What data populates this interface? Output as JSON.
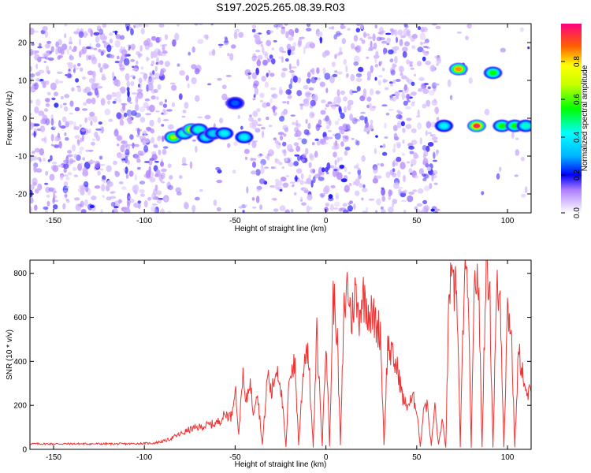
{
  "title": "S197.2025.265.08.39.R03",
  "chart_data": [
    {
      "type": "heatmap",
      "xlabel": "Height of straight line (km)",
      "ylabel": "Frequency (Hz)",
      "xlim": [
        -163,
        113
      ],
      "ylim": [
        -25,
        25
      ],
      "xticks": [
        -150,
        -100,
        -50,
        0,
        50,
        100
      ],
      "yticks": [
        -20,
        -10,
        0,
        10,
        20
      ],
      "colorbar": {
        "label": "Normalized spectral amplitude",
        "range": [
          0,
          1
        ],
        "ticks": [
          "0.0",
          "0.2",
          "0.4",
          "0.6",
          "0.8"
        ]
      },
      "blobs": [
        {
          "x": -84,
          "y": -5,
          "amp": 0.65
        },
        {
          "x": -78,
          "y": -4,
          "amp": 0.45
        },
        {
          "x": -74,
          "y": -3,
          "amp": 0.75
        },
        {
          "x": -70,
          "y": -3,
          "amp": 0.45
        },
        {
          "x": -66,
          "y": -5,
          "amp": 0.4
        },
        {
          "x": -62,
          "y": -4,
          "amp": 0.35
        },
        {
          "x": -56,
          "y": -4,
          "amp": 0.4
        },
        {
          "x": -50,
          "y": 4,
          "amp": 0.25
        },
        {
          "x": -45,
          "y": -5,
          "amp": 0.4
        },
        {
          "x": 65,
          "y": -2,
          "amp": 0.4
        },
        {
          "x": 73,
          "y": 13,
          "amp": 0.85
        },
        {
          "x": 83,
          "y": -2,
          "amp": 0.95
        },
        {
          "x": 92,
          "y": 12,
          "amp": 0.55
        },
        {
          "x": 97,
          "y": -2,
          "amp": 0.55
        },
        {
          "x": 104,
          "y": -2,
          "amp": 0.55
        },
        {
          "x": 110,
          "y": -2,
          "amp": 0.45
        }
      ]
    },
    {
      "type": "line",
      "xlabel": "Height of straight line (km)",
      "ylabel": "SNR (10 * v/v)",
      "xlim": [
        -163,
        113
      ],
      "ylim": [
        0,
        860
      ],
      "xticks": [
        -150,
        -100,
        -50,
        0,
        50,
        100
      ],
      "yticks": [
        0,
        200,
        400,
        600,
        800
      ],
      "series": [
        {
          "name": "SNR",
          "color": "#ee3333",
          "x": [
            -163,
            -150,
            -130,
            -110,
            -95,
            -88,
            -80,
            -75,
            -70,
            -65,
            -60,
            -55,
            -52,
            -50,
            -48,
            -46,
            -44,
            -42,
            -40,
            -38,
            -35,
            -32,
            -30,
            -27,
            -25,
            -22,
            -20,
            -17,
            -15,
            -12,
            -10,
            -7,
            -5,
            -2,
            0,
            2,
            4,
            6,
            8,
            10,
            12,
            14,
            16,
            18,
            20,
            22,
            24,
            26,
            28,
            30,
            32,
            34,
            36,
            38,
            40,
            42,
            44,
            46,
            48,
            50,
            52,
            54,
            56,
            58,
            60,
            62,
            64,
            66,
            68,
            70,
            72,
            74,
            76,
            78,
            80,
            82,
            84,
            86,
            88,
            90,
            92,
            94,
            96,
            98,
            100,
            102,
            104,
            106,
            108,
            110,
            113
          ],
          "y": [
            25,
            25,
            25,
            25,
            28,
            40,
            70,
            90,
            100,
            110,
            120,
            160,
            150,
            300,
            60,
            340,
            200,
            320,
            170,
            280,
            20,
            350,
            250,
            380,
            300,
            10,
            360,
            380,
            20,
            420,
            470,
            10,
            520,
            15,
            540,
            15,
            700,
            560,
            20,
            630,
            760,
            580,
            720,
            600,
            700,
            680,
            620,
            600,
            560,
            540,
            20,
            480,
            430,
            390,
            350,
            240,
            200,
            210,
            230,
            190,
            10,
            210,
            195,
            15,
            200,
            20,
            130,
            10,
            760,
            700,
            780,
            10,
            730,
            790,
            10,
            800,
            760,
            10,
            810,
            790,
            10,
            720,
            690,
            10,
            640,
            560,
            10,
            430,
            380,
            240,
            260
          ]
        }
      ]
    }
  ]
}
